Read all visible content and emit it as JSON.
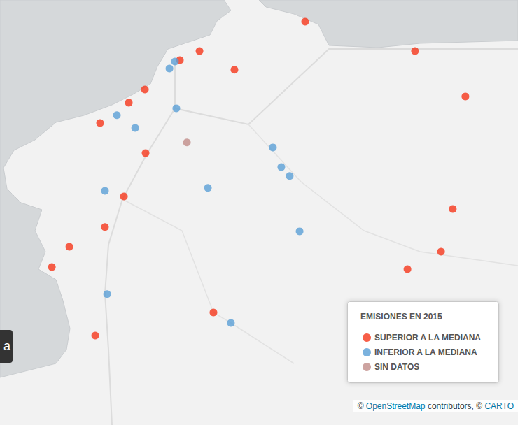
{
  "chart_data": {
    "type": "scatter",
    "legend_title": "EMISIONES EN 2015",
    "series": [
      {
        "name": "SUPERIOR A LA MEDIANA",
        "color": "#f5361a",
        "x": [
          -7.461,
          -6.807,
          -6.507,
          -8.09,
          -8.207,
          -7.882,
          -8.415,
          -8.511,
          -8.682,
          -8.411,
          -8.54,
          -8.653,
          -8.865,
          -8.969,
          -8.007,
          -8.711,
          -6.582,
          -6.652,
          -6.852
        ],
        "y": [
          43.661,
          43.53,
          43.327,
          43.53,
          43.489,
          43.446,
          43.358,
          43.299,
          43.208,
          43.074,
          42.88,
          42.743,
          42.655,
          42.564,
          42.361,
          42.258,
          42.824,
          42.633,
          42.555
        ]
      },
      {
        "name": "INFERIOR A LA MEDIANA",
        "color": "#5a9fd6",
        "x": [
          -8.269,
          -8.236,
          -8.228,
          -8.582,
          -8.473,
          -7.653,
          -7.603,
          -7.553,
          -8.653,
          -8.04,
          -7.494,
          -8.64,
          -7.903
        ],
        "y": [
          43.452,
          43.483,
          43.274,
          43.243,
          43.186,
          43.099,
          43.011,
          42.971,
          42.905,
          42.918,
          42.724,
          42.443,
          42.314
        ]
      },
      {
        "name": "SIN DATOS",
        "color": "#c08c88",
        "x": [
          -8.165
        ],
        "y": [
          43.121
        ]
      }
    ],
    "xlim": [
      -9.278,
      -6.194
    ],
    "ylim": [
      41.858,
      43.758
    ],
    "tick_labels": false,
    "grid": false,
    "legend": "bottom-right",
    "marker": "circle"
  },
  "attribution": [
    {
      "text": "© ",
      "link": false
    },
    {
      "text": "OpenStreetMap",
      "link": true
    },
    {
      "text": " contributors, © ",
      "link": false
    },
    {
      "text": "CARTO",
      "link": true
    }
  ],
  "side_tab": "a"
}
